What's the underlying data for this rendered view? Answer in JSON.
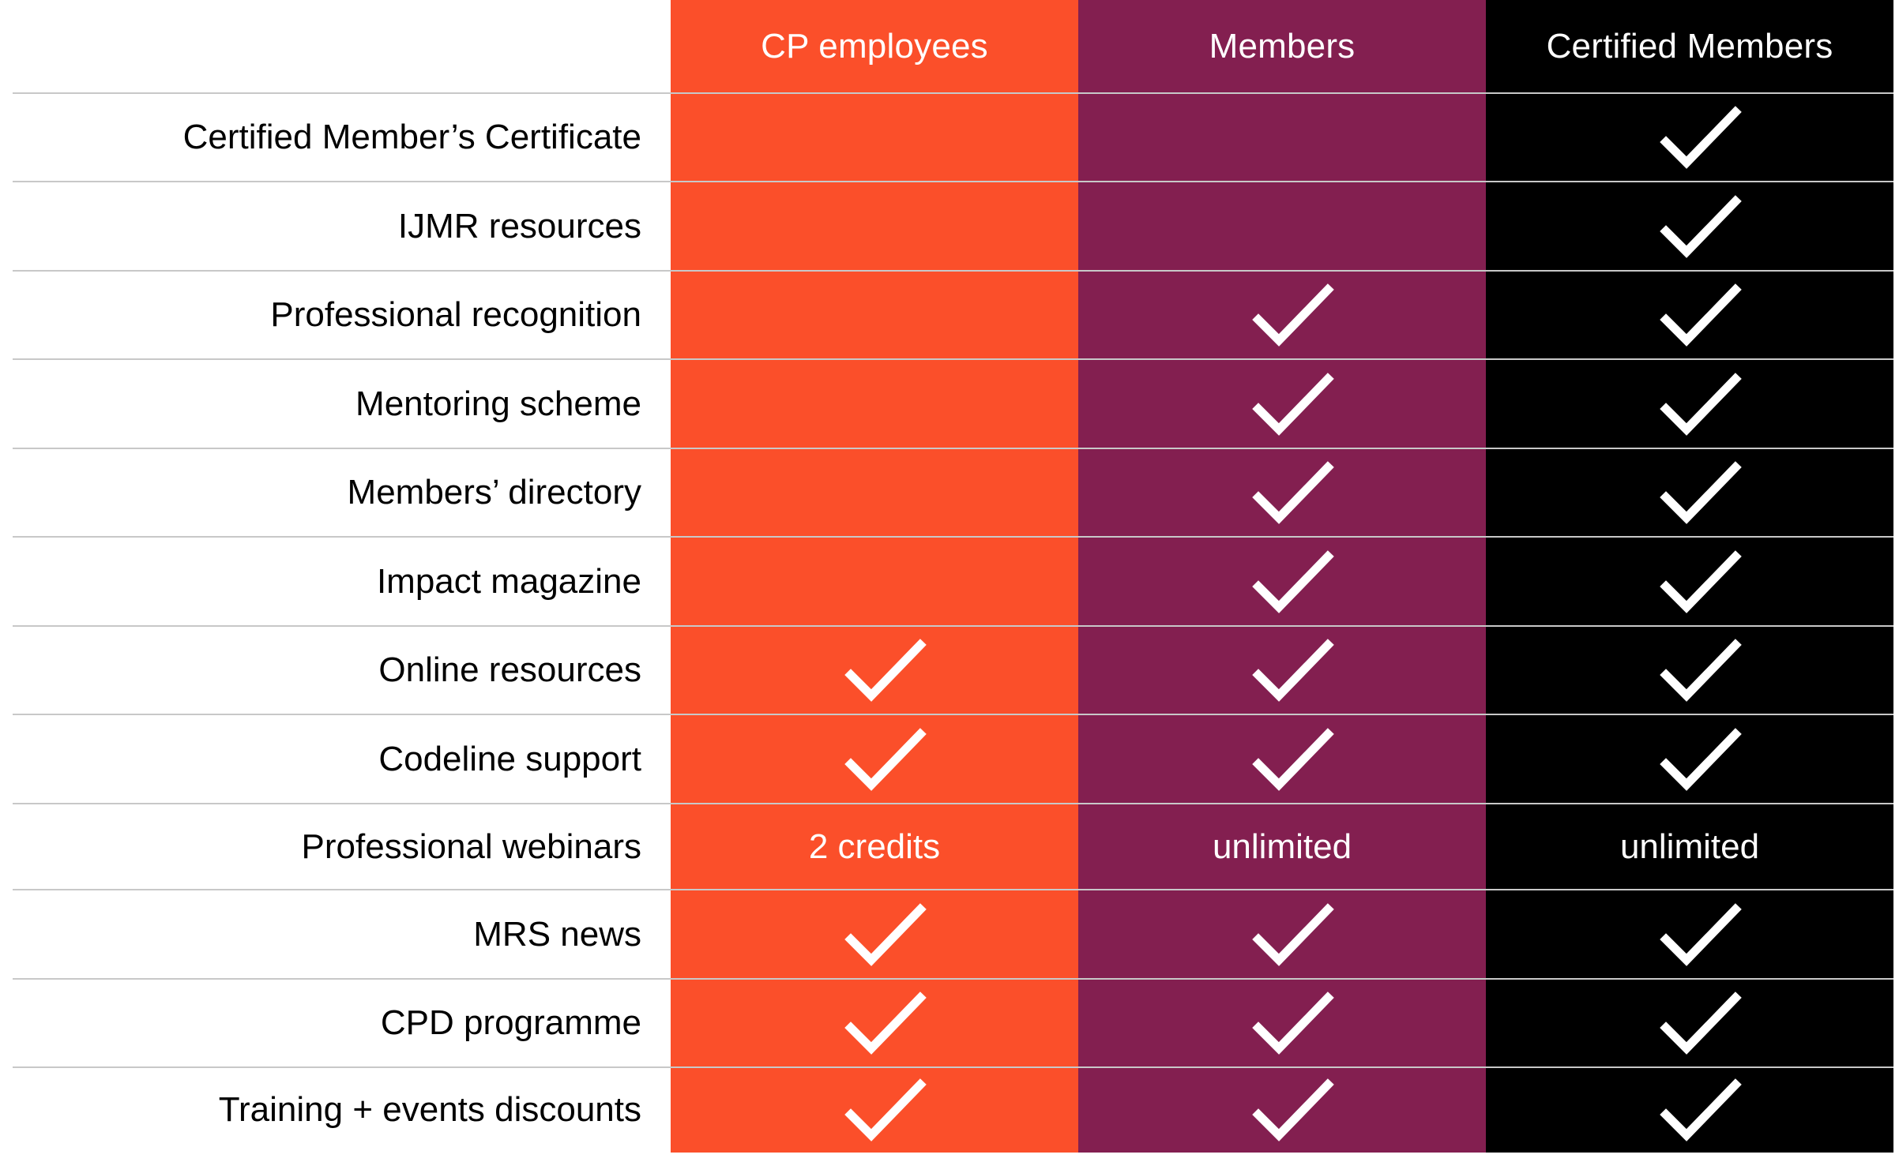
{
  "colors": {
    "cp_employees": "#FB4F2A",
    "members": "#831F50",
    "certified_members": "#000000"
  },
  "columns": [
    {
      "label": "CP employees"
    },
    {
      "label": "Members"
    },
    {
      "label": "Certified Members"
    }
  ],
  "rows": [
    {
      "label": "Certified Member’s Certificate",
      "cells": [
        {
          "type": "empty"
        },
        {
          "type": "empty"
        },
        {
          "type": "check",
          "icon": "check-icon"
        }
      ]
    },
    {
      "label": "IJMR resources",
      "cells": [
        {
          "type": "empty"
        },
        {
          "type": "empty"
        },
        {
          "type": "check",
          "icon": "check-icon"
        }
      ]
    },
    {
      "label": "Professional recognition",
      "cells": [
        {
          "type": "empty"
        },
        {
          "type": "check",
          "icon": "check-icon"
        },
        {
          "type": "check",
          "icon": "check-icon"
        }
      ]
    },
    {
      "label": "Mentoring scheme",
      "cells": [
        {
          "type": "empty"
        },
        {
          "type": "check",
          "icon": "check-icon"
        },
        {
          "type": "check",
          "icon": "check-icon"
        }
      ]
    },
    {
      "label": "Members’ directory",
      "cells": [
        {
          "type": "empty"
        },
        {
          "type": "check",
          "icon": "check-icon"
        },
        {
          "type": "check",
          "icon": "check-icon"
        }
      ]
    },
    {
      "label": "Impact magazine",
      "cells": [
        {
          "type": "empty"
        },
        {
          "type": "check",
          "icon": "check-icon"
        },
        {
          "type": "check",
          "icon": "check-icon"
        }
      ]
    },
    {
      "label": "Online resources",
      "cells": [
        {
          "type": "check",
          "icon": "check-icon"
        },
        {
          "type": "check",
          "icon": "check-icon"
        },
        {
          "type": "check",
          "icon": "check-icon"
        }
      ]
    },
    {
      "label": "Codeline support",
      "cells": [
        {
          "type": "check",
          "icon": "check-icon"
        },
        {
          "type": "check",
          "icon": "check-icon"
        },
        {
          "type": "check",
          "icon": "check-icon"
        }
      ]
    },
    {
      "label": "Professional webinars",
      "cells": [
        {
          "type": "text",
          "text": "2 credits"
        },
        {
          "type": "text",
          "text": "unlimited"
        },
        {
          "type": "text",
          "text": "unlimited"
        }
      ]
    },
    {
      "label": "MRS news",
      "cells": [
        {
          "type": "check",
          "icon": "check-icon"
        },
        {
          "type": "check",
          "icon": "check-icon"
        },
        {
          "type": "check",
          "icon": "check-icon"
        }
      ]
    },
    {
      "label": "CPD programme",
      "cells": [
        {
          "type": "check",
          "icon": "check-icon"
        },
        {
          "type": "check",
          "icon": "check-icon"
        },
        {
          "type": "check",
          "icon": "check-icon"
        }
      ]
    },
    {
      "label": "Training + events discounts",
      "cells": [
        {
          "type": "check",
          "icon": "check-icon"
        },
        {
          "type": "check",
          "icon": "check-icon"
        },
        {
          "type": "check",
          "icon": "check-icon"
        }
      ]
    }
  ]
}
